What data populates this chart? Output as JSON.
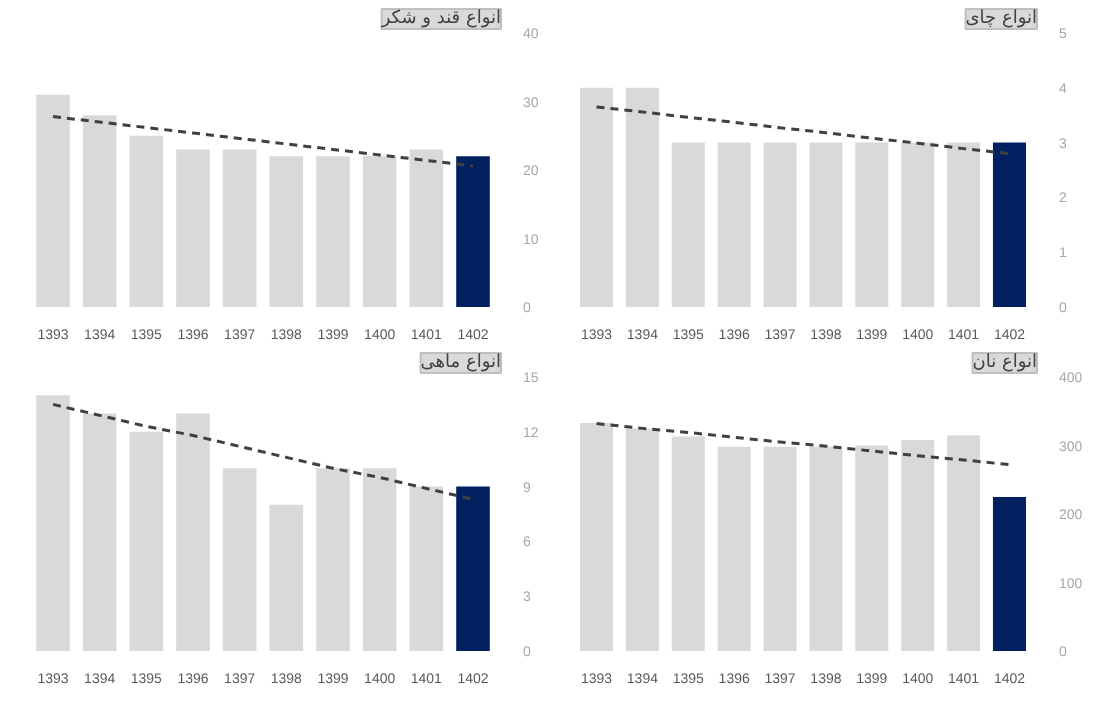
{
  "chart_data": [
    {
      "type": "bar",
      "title": "انواع قند و شکر",
      "categories": [
        "1393",
        "1394",
        "1395",
        "1396",
        "1397",
        "1398",
        "1399",
        "1400",
        "1401",
        "1402"
      ],
      "ylim": [
        0,
        40
      ],
      "yticks": [
        0,
        10,
        20,
        30,
        40
      ],
      "grid": false,
      "series": [
        {
          "colors": [
            "#d9d9d9",
            "#d9d9d9",
            "#d9d9d9",
            "#d9d9d9",
            "#d9d9d9",
            "#d9d9d9",
            "#d9d9d9",
            "#d9d9d9",
            "#d9d9d9",
            "#002060"
          ],
          "values": [
            31,
            28,
            25,
            23,
            23,
            22,
            22,
            22,
            23,
            22
          ]
        },
        {
          "type": "line",
          "color": "#404040",
          "line_style": "dashed",
          "values": [
            27.8,
            27.0,
            26.2,
            25.4,
            24.6,
            23.8,
            23.0,
            22.2,
            21.4,
            20.6
          ]
        }
      ]
    },
    {
      "type": "bar",
      "title": "انواع چای",
      "categories": [
        "1393",
        "1394",
        "1395",
        "1396",
        "1397",
        "1398",
        "1399",
        "1400",
        "1401",
        "1402"
      ],
      "ylim": [
        0,
        5
      ],
      "yticks": [
        0,
        1,
        2,
        3,
        4,
        5
      ],
      "grid": false,
      "series": [
        {
          "colors": [
            "#d9d9d9",
            "#d9d9d9",
            "#d9d9d9",
            "#d9d9d9",
            "#d9d9d9",
            "#d9d9d9",
            "#d9d9d9",
            "#d9d9d9",
            "#d9d9d9",
            "#002060"
          ],
          "values": [
            4,
            4,
            3,
            3,
            3,
            3,
            3,
            3,
            3,
            3
          ]
        },
        {
          "type": "line",
          "color": "#404040",
          "line_style": "dashed",
          "values": [
            3.65,
            3.56,
            3.46,
            3.37,
            3.27,
            3.18,
            3.08,
            2.99,
            2.89,
            2.8
          ]
        }
      ]
    },
    {
      "type": "bar",
      "title": "انواع ماهی",
      "categories": [
        "1393",
        "1394",
        "1395",
        "1396",
        "1397",
        "1398",
        "1399",
        "1400",
        "1401",
        "1402"
      ],
      "ylim": [
        0,
        15
      ],
      "yticks": [
        0,
        3,
        6,
        9,
        12,
        15
      ],
      "grid": false,
      "series": [
        {
          "colors": [
            "#d9d9d9",
            "#d9d9d9",
            "#d9d9d9",
            "#d9d9d9",
            "#d9d9d9",
            "#d9d9d9",
            "#d9d9d9",
            "#d9d9d9",
            "#d9d9d9",
            "#002060"
          ],
          "values": [
            14,
            13,
            12,
            13,
            10,
            8,
            10,
            10,
            9,
            9
          ]
        },
        {
          "type": "line",
          "color": "#404040",
          "line_style": "dashed",
          "values": [
            13.5,
            12.9,
            12.3,
            11.8,
            11.2,
            10.6,
            10.0,
            9.5,
            8.9,
            8.3
          ]
        }
      ]
    },
    {
      "type": "bar",
      "title": "انواع نان",
      "categories": [
        "1393",
        "1394",
        "1395",
        "1396",
        "1397",
        "1398",
        "1399",
        "1400",
        "1401",
        "1402"
      ],
      "ylim": [
        0,
        400
      ],
      "yticks": [
        0,
        100,
        200,
        300,
        400
      ],
      "grid": false,
      "series": [
        {
          "colors": [
            "#d9d9d9",
            "#d9d9d9",
            "#d9d9d9",
            "#d9d9d9",
            "#d9d9d9",
            "#d9d9d9",
            "#d9d9d9",
            "#d9d9d9",
            "#d9d9d9",
            "#002060"
          ],
          "values": [
            333,
            325,
            313,
            298,
            298,
            298,
            300,
            308,
            315,
            225
          ]
        },
        {
          "type": "line",
          "color": "#404040",
          "line_style": "dashed",
          "values": [
            332,
            325,
            319,
            312,
            305,
            299,
            292,
            285,
            279,
            272
          ]
        }
      ]
    }
  ]
}
